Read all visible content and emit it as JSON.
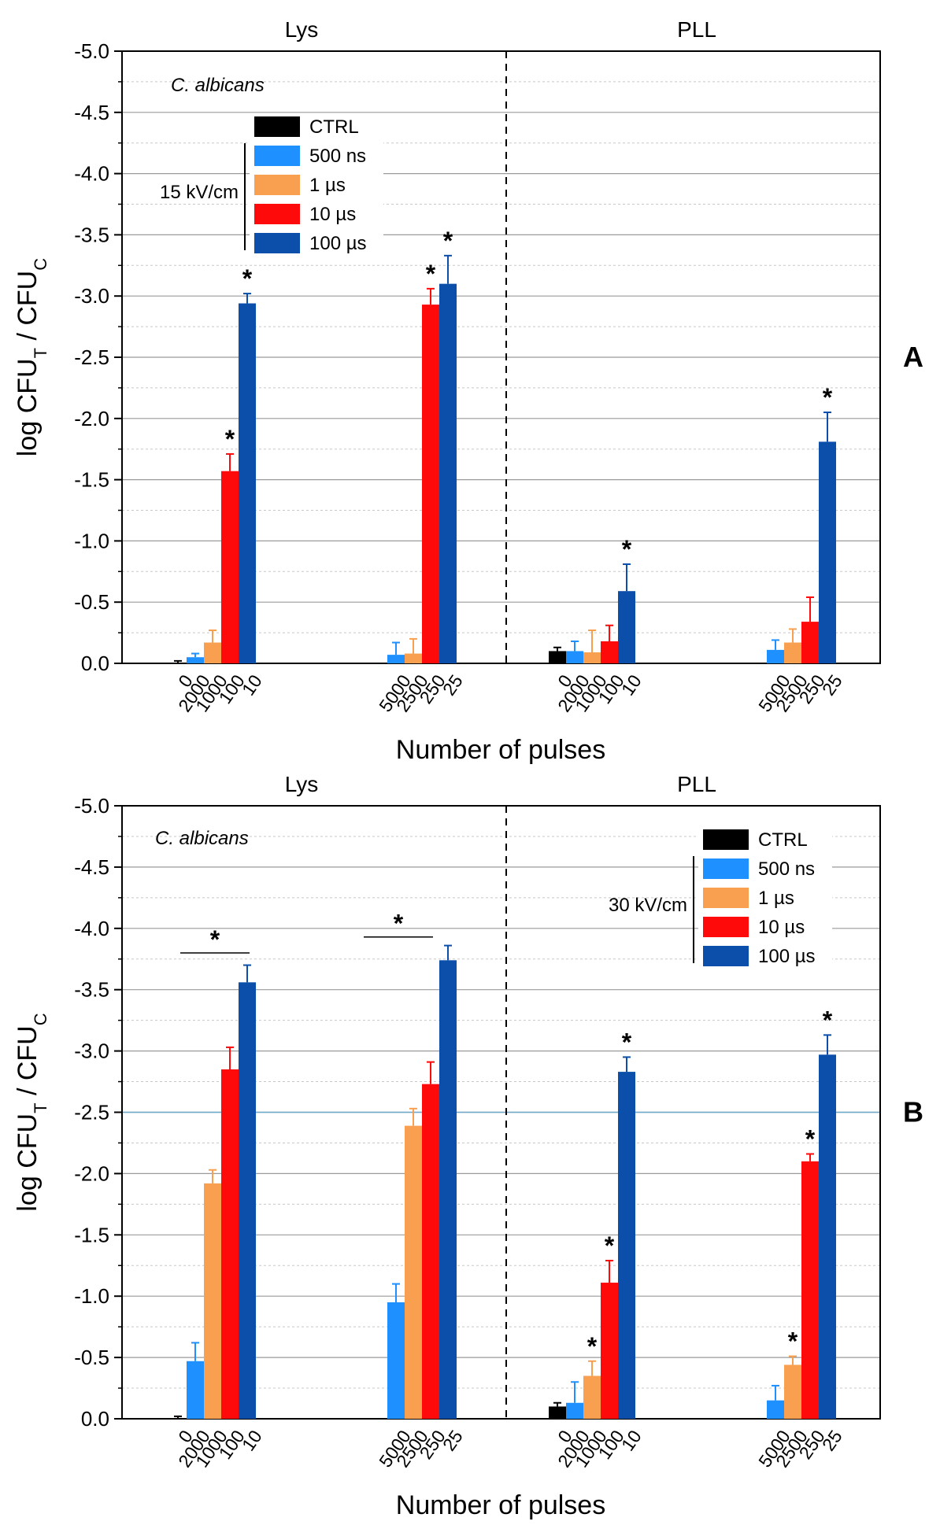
{
  "chart_data": [
    {
      "type": "bar",
      "panel_label": "A",
      "annotation": "C. albicans",
      "field_label": "15 kV/cm",
      "title_groups": [
        "Lys",
        "PLL"
      ],
      "xlabel": "Number of pulses",
      "ylabel_main": "log CFU",
      "ylabel_sub_t": "T",
      "ylabel_sep": " / CFU",
      "ylabel_sub_c": "C",
      "ylim": [
        0,
        -5.0
      ],
      "yticks": [
        "0.0",
        "-0.5",
        "-1.0",
        "-1.5",
        "-2.0",
        "-2.5",
        "-3.0",
        "-3.5",
        "-4.0",
        "-4.5",
        "-5.0"
      ],
      "legend": [
        "CTRL",
        "500 ns",
        "1 µs",
        "10 µs",
        "100 µs"
      ],
      "colors": {
        "CTRL": "#000000",
        "500 ns": "#1e90ff",
        "1 µs": "#f8a050",
        "10 µs": "#ff0a0a",
        "100 µs": "#0b4faa"
      },
      "groups": [
        {
          "section": "Lys",
          "categories": [
            "0",
            "2000",
            "1000",
            "100",
            "10"
          ],
          "series": [
            "CTRL",
            "500 ns",
            "1 µs",
            "10 µs",
            "100 µs"
          ],
          "values": [
            0.0,
            -0.05,
            -0.17,
            -1.57,
            -2.94
          ],
          "errors": [
            0.02,
            0.03,
            0.1,
            0.14,
            0.08
          ],
          "stars": [
            false,
            false,
            false,
            true,
            true
          ]
        },
        {
          "section": "Lys",
          "categories": [
            "5000",
            "2500",
            "250",
            "25"
          ],
          "series": [
            "500 ns",
            "1 µs",
            "10 µs",
            "100 µs"
          ],
          "values": [
            -0.07,
            -0.08,
            -2.93,
            -3.1
          ],
          "errors": [
            0.1,
            0.12,
            0.13,
            0.23
          ],
          "stars": [
            false,
            false,
            true,
            true
          ]
        },
        {
          "section": "PLL",
          "categories": [
            "0",
            "2000",
            "1000",
            "100",
            "10"
          ],
          "series": [
            "CTRL",
            "500 ns",
            "1 µs",
            "10 µs",
            "100 µs"
          ],
          "values": [
            -0.1,
            -0.1,
            -0.09,
            -0.18,
            -0.59
          ],
          "errors": [
            0.03,
            0.08,
            0.18,
            0.13,
            0.22
          ],
          "stars": [
            false,
            false,
            false,
            false,
            true
          ]
        },
        {
          "section": "PLL",
          "categories": [
            "5000",
            "2500",
            "250",
            "25"
          ],
          "series": [
            "500 ns",
            "1 µs",
            "10 µs",
            "100 µs"
          ],
          "values": [
            -0.11,
            -0.17,
            -0.34,
            -1.81
          ],
          "errors": [
            0.08,
            0.11,
            0.2,
            0.24
          ],
          "stars": [
            false,
            false,
            false,
            true
          ]
        }
      ],
      "bracket_stars": []
    },
    {
      "type": "bar",
      "panel_label": "B",
      "annotation": "C. albicans",
      "field_label": "30 kV/cm",
      "title_groups": [
        "Lys",
        "PLL"
      ],
      "xlabel": "Number of pulses",
      "ylabel_main": "log CFU",
      "ylabel_sub_t": "T",
      "ylabel_sep": " / CFU",
      "ylabel_sub_c": "C",
      "ylim": [
        0,
        -5.0
      ],
      "yticks": [
        "0.0",
        "-0.5",
        "-1.0",
        "-1.5",
        "-2.0",
        "-2.5",
        "-3.0",
        "-3.5",
        "-4.0",
        "-4.5",
        "-5.0"
      ],
      "legend": [
        "CTRL",
        "500 ns",
        "1 µs",
        "10 µs",
        "100 µs"
      ],
      "colors": {
        "CTRL": "#000000",
        "500 ns": "#1e90ff",
        "1 µs": "#f8a050",
        "10 µs": "#ff0a0a",
        "100 µs": "#0b4faa"
      },
      "groups": [
        {
          "section": "Lys",
          "categories": [
            "0",
            "2000",
            "1000",
            "100",
            "10"
          ],
          "series": [
            "CTRL",
            "500 ns",
            "1 µs",
            "10 µs",
            "100 µs"
          ],
          "values": [
            0.0,
            -0.47,
            -1.92,
            -2.85,
            -3.56
          ],
          "errors": [
            0.02,
            0.15,
            0.11,
            0.18,
            0.14
          ],
          "stars": [
            false,
            false,
            false,
            false,
            false
          ]
        },
        {
          "section": "Lys",
          "categories": [
            "5000",
            "2500",
            "250",
            "25"
          ],
          "series": [
            "500 ns",
            "1 µs",
            "10 µs",
            "100 µs"
          ],
          "values": [
            -0.95,
            -2.39,
            -2.73,
            -3.74
          ],
          "errors": [
            0.15,
            0.14,
            0.18,
            0.12
          ],
          "stars": [
            false,
            false,
            false,
            false
          ]
        },
        {
          "section": "PLL",
          "categories": [
            "0",
            "2000",
            "1000",
            "100",
            "10"
          ],
          "series": [
            "CTRL",
            "500 ns",
            "1 µs",
            "10 µs",
            "100 µs"
          ],
          "values": [
            -0.1,
            -0.13,
            -0.35,
            -1.11,
            -2.83
          ],
          "errors": [
            0.03,
            0.17,
            0.12,
            0.18,
            0.12
          ],
          "stars": [
            false,
            false,
            true,
            true,
            true
          ]
        },
        {
          "section": "PLL",
          "categories": [
            "5000",
            "2500",
            "250",
            "25"
          ],
          "series": [
            "500 ns",
            "1 µs",
            "10 µs",
            "100 µs"
          ],
          "values": [
            -0.15,
            -0.44,
            -2.1,
            -2.97
          ],
          "errors": [
            0.12,
            0.07,
            0.06,
            0.16
          ],
          "stars": [
            false,
            true,
            true,
            true
          ]
        }
      ],
      "bracket_stars": [
        {
          "group": 0,
          "from": 1,
          "to": 4,
          "y": -3.8
        },
        {
          "group": 1,
          "from": 0,
          "to": 3,
          "y": -3.93
        }
      ]
    }
  ],
  "star_symbol": "*"
}
